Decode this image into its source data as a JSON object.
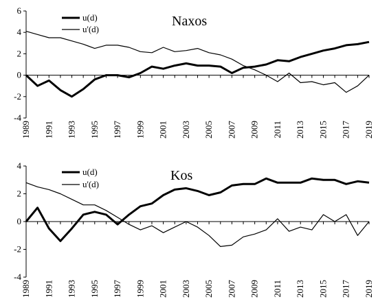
{
  "chart_data": [
    {
      "type": "line",
      "title": "Naxos",
      "x": [
        1989,
        1990,
        1991,
        1992,
        1993,
        1994,
        1995,
        1996,
        1997,
        1998,
        1999,
        2000,
        2001,
        2002,
        2003,
        2004,
        2005,
        2006,
        2007,
        2008,
        2009,
        2010,
        2011,
        2012,
        2013,
        2014,
        2015,
        2016,
        2017,
        2018,
        2019
      ],
      "xticks": [
        "1989",
        "1991",
        "1993",
        "1995",
        "1997",
        "1999",
        "2001",
        "2003",
        "2005",
        "2007",
        "2009",
        "2011",
        "2013",
        "2015",
        "2017",
        "2019"
      ],
      "yticks": [
        "-4",
        "-2",
        "0",
        "2",
        "4",
        "6"
      ],
      "ylim": [
        -4,
        6
      ],
      "grid": false,
      "legend": "top-left",
      "series": [
        {
          "name": "u(d)",
          "color": "#000000",
          "width": "thick",
          "values": [
            0,
            -1,
            -0.5,
            -1.4,
            -2,
            -1.3,
            -0.4,
            0,
            0,
            -0.2,
            0.2,
            0.8,
            0.6,
            0.9,
            1.1,
            0.9,
            0.9,
            0.8,
            0.2,
            0.7,
            0.8,
            1,
            1.4,
            1.3,
            1.7,
            2,
            2.3,
            2.5,
            2.8,
            2.9,
            3.1
          ]
        },
        {
          "name": "u'(d)",
          "color": "#000000",
          "width": "thin",
          "values": [
            4.1,
            3.8,
            3.5,
            3.5,
            3.2,
            2.9,
            2.5,
            2.8,
            2.8,
            2.6,
            2.2,
            2.1,
            2.6,
            2.2,
            2.3,
            2.5,
            2.1,
            1.9,
            1.5,
            0.9,
            0.5,
            0,
            -0.6,
            0.2,
            -0.7,
            -0.6,
            -0.9,
            -0.7,
            -1.6,
            -1,
            0
          ]
        }
      ]
    },
    {
      "type": "line",
      "title": "Kos",
      "x": [
        1989,
        1990,
        1991,
        1992,
        1993,
        1994,
        1995,
        1996,
        1997,
        1998,
        1999,
        2000,
        2001,
        2002,
        2003,
        2004,
        2005,
        2006,
        2007,
        2008,
        2009,
        2010,
        2011,
        2012,
        2013,
        2014,
        2015,
        2016,
        2017,
        2018,
        2019
      ],
      "xticks": [
        "1989",
        "1991",
        "1993",
        "1995",
        "1997",
        "1999",
        "2001",
        "2003",
        "2005",
        "2007",
        "2009",
        "2011",
        "2013",
        "2015",
        "2017",
        "2019"
      ],
      "yticks": [
        "-4",
        "-2",
        "0",
        "2",
        "4"
      ],
      "ylim": [
        -4,
        4
      ],
      "grid": false,
      "legend": "top-left",
      "series": [
        {
          "name": "u(d)",
          "color": "#000000",
          "width": "thick",
          "values": [
            0,
            1,
            -0.5,
            -1.4,
            -0.5,
            0.5,
            0.7,
            0.5,
            -0.2,
            0.5,
            1.1,
            1.3,
            1.9,
            2.3,
            2.4,
            2.2,
            1.9,
            2.1,
            2.6,
            2.7,
            2.7,
            3.1,
            2.8,
            2.8,
            2.8,
            3.1,
            3,
            3,
            2.7,
            2.9,
            2.8
          ]
        },
        {
          "name": "u'(d)",
          "color": "#000000",
          "width": "thin",
          "values": [
            2.8,
            2.5,
            2.3,
            2,
            1.6,
            1.2,
            1.2,
            0.8,
            0.3,
            -0.2,
            -0.6,
            -0.3,
            -0.8,
            -0.4,
            0,
            -0.4,
            -1,
            -1.8,
            -1.7,
            -1.1,
            -0.9,
            -0.6,
            0.2,
            -0.7,
            -0.4,
            -0.6,
            0.5,
            0,
            0.5,
            -1,
            0
          ]
        }
      ]
    }
  ]
}
